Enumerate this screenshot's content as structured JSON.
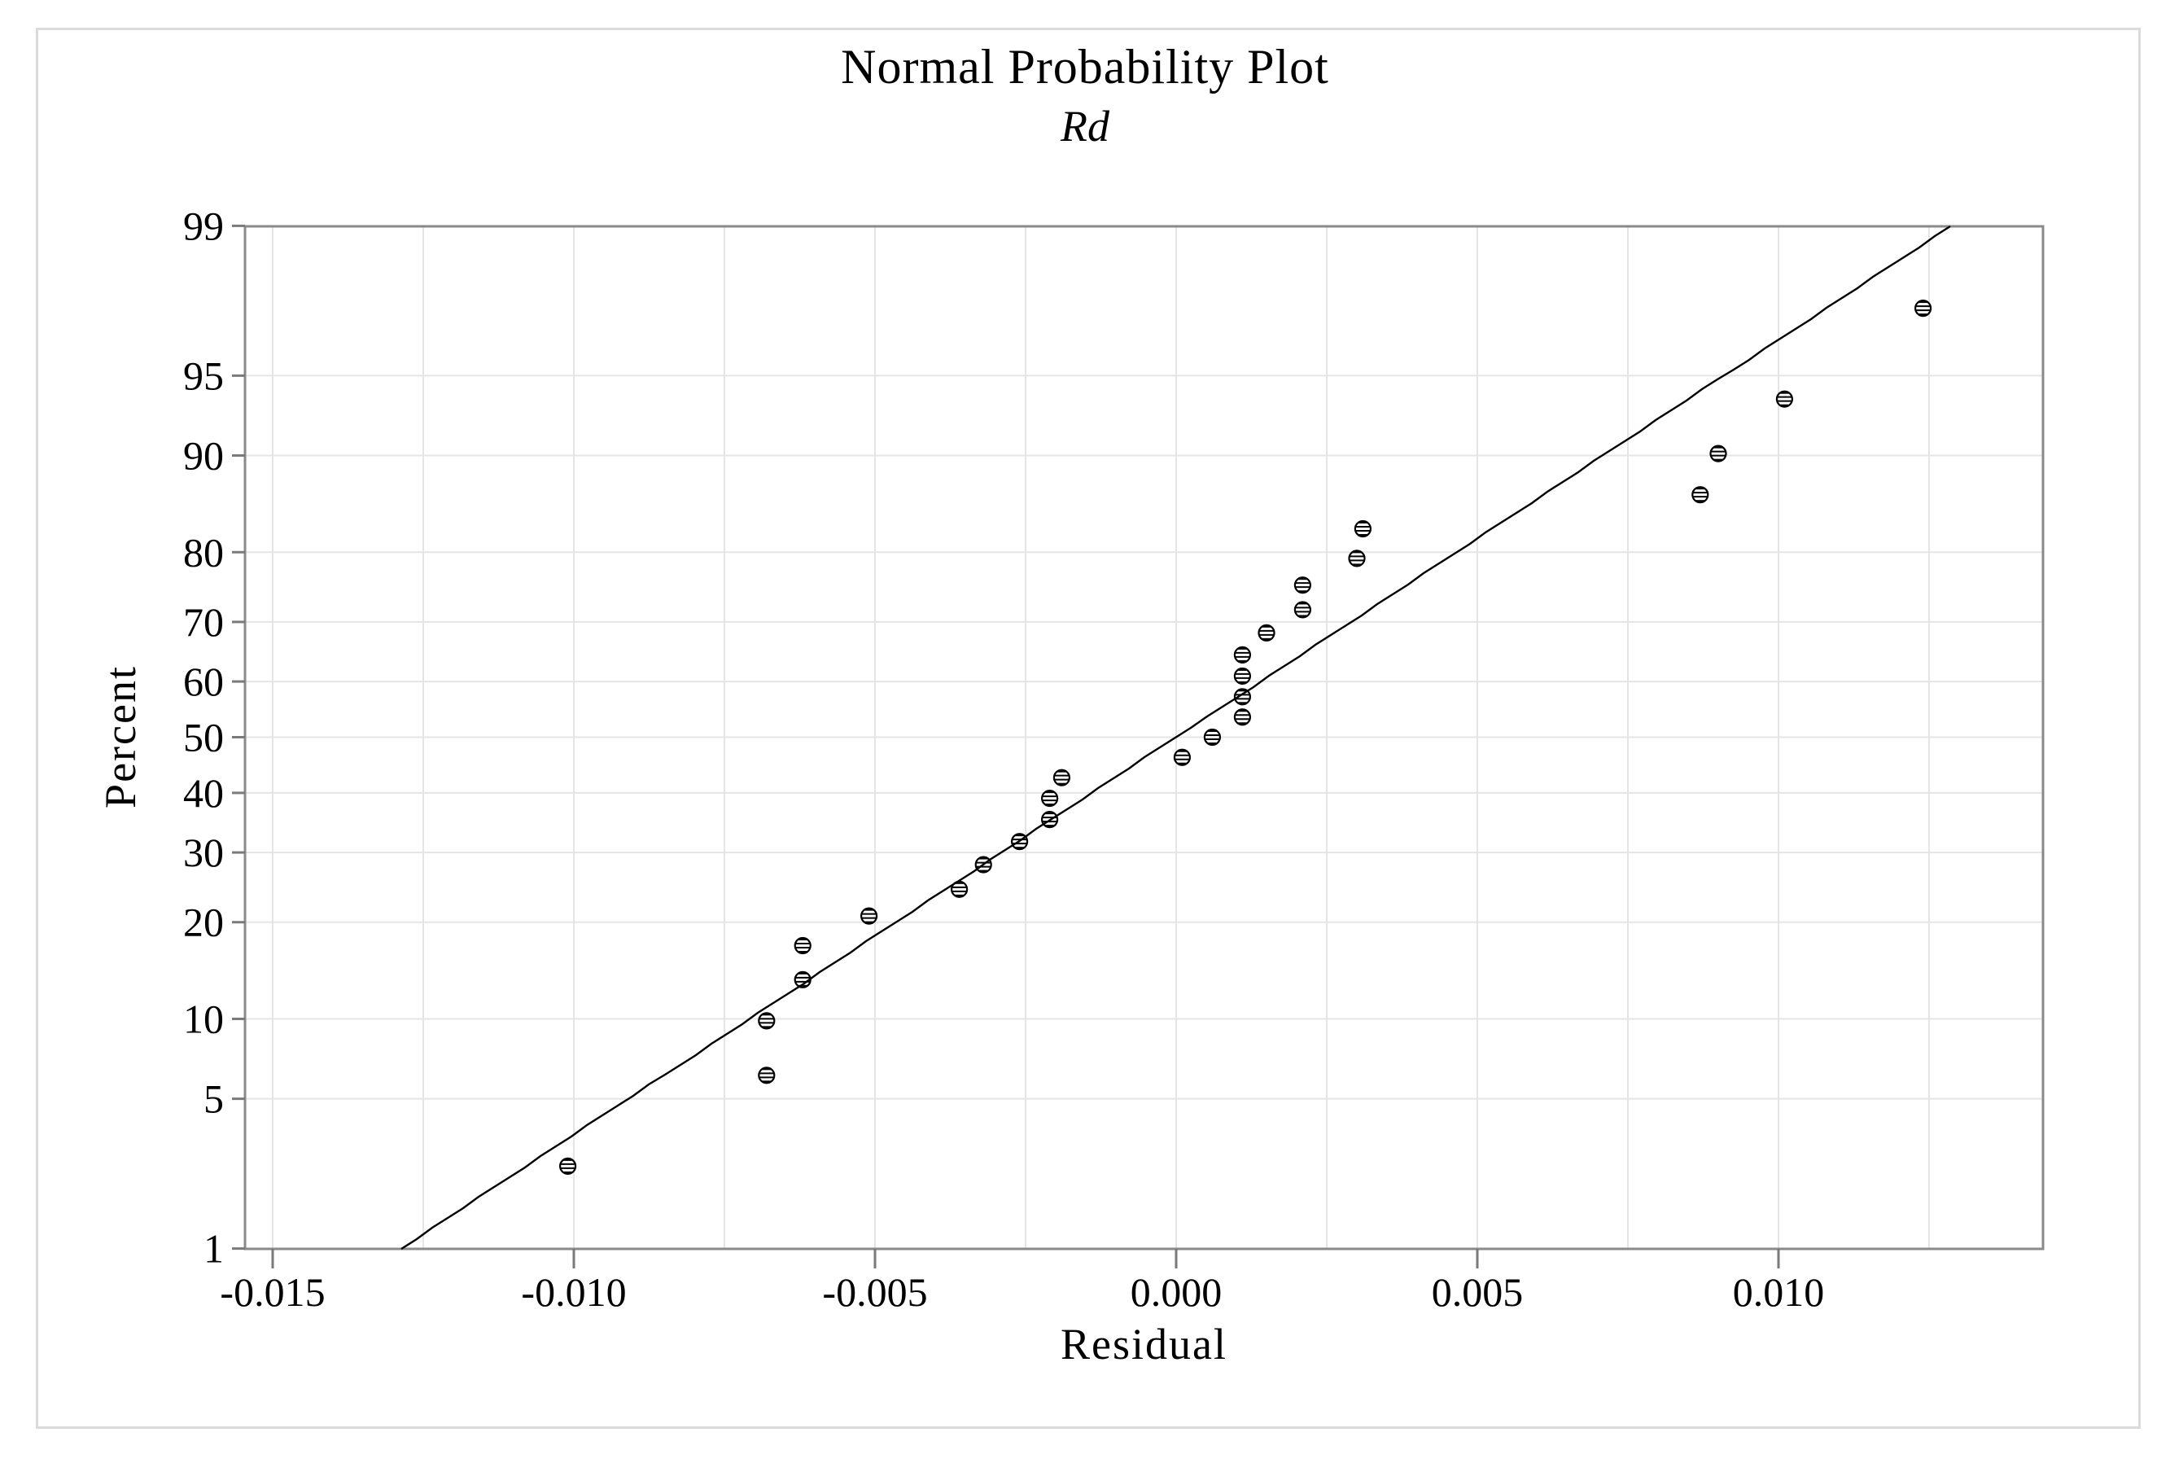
{
  "colors": {
    "background": "#ffffff",
    "figure_border": "#dadada",
    "frame": "#8a8a8a",
    "gridline": "#e5e5e5",
    "tick": "#7a7a7a",
    "text": "#000000",
    "marker": "#000000",
    "fit_line": "#000000"
  },
  "chart_data": {
    "type": "scatter",
    "title": "Normal Probability Plot",
    "subtitle": "Rd",
    "xlabel": "Residual",
    "ylabel": "Percent",
    "y_scale": "normal-probability",
    "grid": true,
    "legend": false,
    "xlim": [
      -0.01546,
      0.0144
    ],
    "ylim": [
      1,
      99
    ],
    "x_minor_step": 0.0025,
    "x_ticks": [
      {
        "value": -0.015,
        "label": "-0.015"
      },
      {
        "value": -0.01,
        "label": "-0.010"
      },
      {
        "value": -0.005,
        "label": "-0.005"
      },
      {
        "value": 0.0,
        "label": "0.000"
      },
      {
        "value": 0.005,
        "label": "0.005"
      },
      {
        "value": 0.01,
        "label": "0.010"
      }
    ],
    "y_ticks": [
      {
        "value": 1,
        "label": "1"
      },
      {
        "value": 5,
        "label": "5"
      },
      {
        "value": 10,
        "label": "10"
      },
      {
        "value": 20,
        "label": "20"
      },
      {
        "value": 30,
        "label": "30"
      },
      {
        "value": 40,
        "label": "40"
      },
      {
        "value": 50,
        "label": "50"
      },
      {
        "value": 60,
        "label": "60"
      },
      {
        "value": 70,
        "label": "70"
      },
      {
        "value": 80,
        "label": "80"
      },
      {
        "value": 90,
        "label": "90"
      },
      {
        "value": 95,
        "label": "95"
      },
      {
        "value": 99,
        "label": "99"
      }
    ],
    "points": [
      {
        "residual": -0.0101,
        "percent": 2.55
      },
      {
        "residual": -0.0068,
        "percent": 6.2
      },
      {
        "residual": -0.0068,
        "percent": 9.85
      },
      {
        "residual": -0.0062,
        "percent": 13.5
      },
      {
        "residual": -0.0062,
        "percent": 17.15
      },
      {
        "residual": -0.0051,
        "percent": 20.8
      },
      {
        "residual": -0.0036,
        "percent": 24.45
      },
      {
        "residual": -0.0032,
        "percent": 28.1
      },
      {
        "residual": -0.0026,
        "percent": 31.75
      },
      {
        "residual": -0.0021,
        "percent": 35.4
      },
      {
        "residual": -0.0021,
        "percent": 39.05
      },
      {
        "residual": -0.0019,
        "percent": 42.7
      },
      {
        "residual": 0.0001,
        "percent": 46.35
      },
      {
        "residual": 0.0006,
        "percent": 50.0
      },
      {
        "residual": 0.0011,
        "percent": 53.65
      },
      {
        "residual": 0.0011,
        "percent": 57.3
      },
      {
        "residual": 0.0011,
        "percent": 60.95
      },
      {
        "residual": 0.0011,
        "percent": 64.6
      },
      {
        "residual": 0.0015,
        "percent": 68.25
      },
      {
        "residual": 0.0021,
        "percent": 71.9
      },
      {
        "residual": 0.0021,
        "percent": 75.55
      },
      {
        "residual": 0.003,
        "percent": 79.2
      },
      {
        "residual": 0.0031,
        "percent": 82.85
      },
      {
        "residual": 0.0087,
        "percent": 86.5
      },
      {
        "residual": 0.009,
        "percent": 90.15
      },
      {
        "residual": 0.0101,
        "percent": 93.8
      },
      {
        "residual": 0.0124,
        "percent": 97.45
      }
    ],
    "fit_line": {
      "mean": 0.0,
      "stdev": 0.00553
    }
  }
}
